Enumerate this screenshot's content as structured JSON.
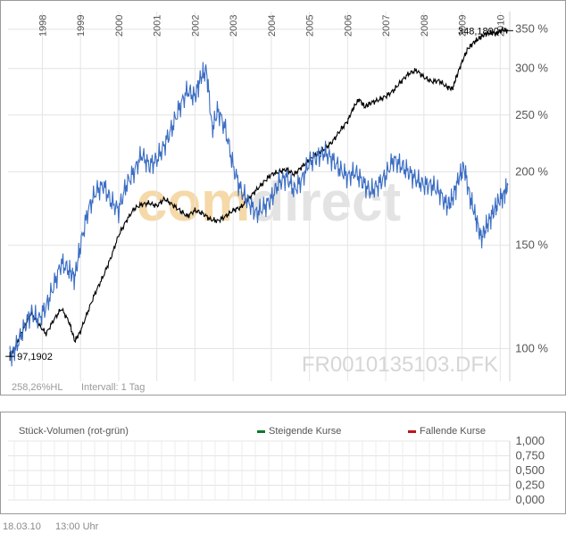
{
  "chart_data": [
    {
      "type": "line",
      "title": "",
      "xlabel": "",
      "ylabel": "",
      "x_tick_labels": [
        "1998",
        "1999",
        "2000",
        "2001",
        "2002",
        "2003",
        "2004",
        "2005",
        "2006",
        "2007",
        "2008",
        "2009",
        "2010"
      ],
      "x_tick_positions": [
        1998,
        1999,
        2000,
        2001,
        2002,
        2003,
        2004,
        2005,
        2006,
        2007,
        2008,
        2009,
        2010
      ],
      "xlim": [
        1997.1,
        2010.25
      ],
      "y_scale": "log",
      "y_ticks": [
        100,
        150,
        200,
        250,
        300,
        350
      ],
      "y_tick_labels": [
        "100 %",
        "150 %",
        "200 %",
        "250 %",
        "300 %",
        "350 %"
      ],
      "ylim": [
        88,
        375
      ],
      "grid": true,
      "watermark": "comdirect",
      "watermark_colors": [
        "#f5d9a8",
        "#e3e3e3"
      ],
      "isin_label": "FR0010135103.DFK",
      "info_text": "258,26%HL",
      "interval_text": "Intervall: 1 Tag",
      "start_label": "97,1902",
      "end_label": "348,1890",
      "series": [
        {
          "color": "#000000",
          "x": [
            1997.15,
            1997.3,
            1997.5,
            1997.7,
            1997.9,
            1998.1,
            1998.3,
            1998.5,
            1998.7,
            1998.85,
            1999.0,
            1999.2,
            1999.4,
            1999.6,
            1999.8,
            2000.0,
            2000.2,
            2000.4,
            2000.6,
            2000.8,
            2001.0,
            2001.2,
            2001.4,
            2001.6,
            2001.8,
            2002.0,
            2002.2,
            2002.4,
            2002.6,
            2002.8,
            2003.0,
            2003.2,
            2003.4,
            2003.6,
            2003.8,
            2004.0,
            2004.2,
            2004.4,
            2004.6,
            2004.8,
            2005.0,
            2005.2,
            2005.4,
            2005.6,
            2005.8,
            2006.0,
            2006.15,
            2006.3,
            2006.45,
            2006.6,
            2006.8,
            2007.0,
            2007.2,
            2007.4,
            2007.6,
            2007.8,
            2008.0,
            2008.2,
            2008.4,
            2008.6,
            2008.75,
            2008.85,
            2009.0,
            2009.15,
            2009.3,
            2009.45,
            2009.6,
            2009.75,
            2009.9,
            2010.05,
            2010.2
          ],
          "y": [
            97,
            101,
            108,
            115,
            110,
            106,
            112,
            117,
            111,
            103,
            107,
            116,
            125,
            133,
            143,
            156,
            165,
            173,
            176,
            177,
            175,
            180,
            176,
            172,
            168,
            172,
            170,
            166,
            165,
            168,
            172,
            174,
            180,
            186,
            192,
            198,
            200,
            202,
            198,
            204,
            210,
            215,
            219,
            225,
            235,
            244,
            257,
            266,
            258,
            262,
            265,
            269,
            275,
            285,
            294,
            298,
            290,
            285,
            286,
            279,
            277,
            290,
            308,
            324,
            332,
            338,
            343,
            345,
            344,
            349,
            348
          ]
        },
        {
          "color": "#3b6dc4",
          "x": [
            1997.15,
            1997.3,
            1997.5,
            1997.7,
            1997.9,
            1998.1,
            1998.3,
            1998.5,
            1998.7,
            1998.85,
            1999.0,
            1999.2,
            1999.4,
            1999.6,
            1999.8,
            2000.0,
            2000.2,
            2000.4,
            2000.6,
            2000.8,
            2001.0,
            2001.2,
            2001.4,
            2001.6,
            2001.8,
            2002.0,
            2002.15,
            2002.3,
            2002.45,
            2002.6,
            2002.8,
            2003.0,
            2003.2,
            2003.4,
            2003.6,
            2003.8,
            2004.0,
            2004.2,
            2004.4,
            2004.6,
            2004.8,
            2005.0,
            2005.2,
            2005.4,
            2005.6,
            2005.8,
            2006.0,
            2006.2,
            2006.4,
            2006.6,
            2006.8,
            2007.0,
            2007.2,
            2007.4,
            2007.6,
            2007.8,
            2008.0,
            2008.2,
            2008.4,
            2008.6,
            2008.75,
            2008.9,
            2009.05,
            2009.2,
            2009.35,
            2009.5,
            2009.65,
            2009.8,
            2009.95,
            2010.1,
            2010.2
          ],
          "y": [
            97,
            100,
            108,
            115,
            112,
            118,
            128,
            140,
            136,
            132,
            150,
            172,
            185,
            190,
            178,
            172,
            190,
            200,
            214,
            205,
            210,
            222,
            238,
            258,
            275,
            268,
            290,
            298,
            236,
            255,
            236,
            204,
            186,
            178,
            170,
            174,
            180,
            192,
            196,
            186,
            194,
            208,
            212,
            216,
            210,
            202,
            196,
            200,
            192,
            185,
            190,
            197,
            210,
            205,
            200,
            194,
            190,
            190,
            185,
            175,
            180,
            194,
            204,
            182,
            168,
            154,
            162,
            170,
            178,
            183,
            190
          ]
        }
      ]
    },
    {
      "type": "bar",
      "title": "Stück-Volumen (rot-grün)",
      "legend": [
        {
          "name": "Steigende Kurse",
          "color": "#0b7a2a"
        },
        {
          "name": "Fallende Kurse",
          "color": "#c0141c"
        }
      ],
      "legend_position": "top",
      "y_ticks": [
        0,
        0.25,
        0.5,
        0.75,
        1
      ],
      "y_tick_labels": [
        "0,000",
        "0,250",
        "0,500",
        "0,750",
        "1,000"
      ],
      "ylim": [
        0,
        1
      ],
      "grid": true,
      "values": []
    }
  ],
  "footer": {
    "date": "18.03.10",
    "time": "13:00 Uhr"
  }
}
